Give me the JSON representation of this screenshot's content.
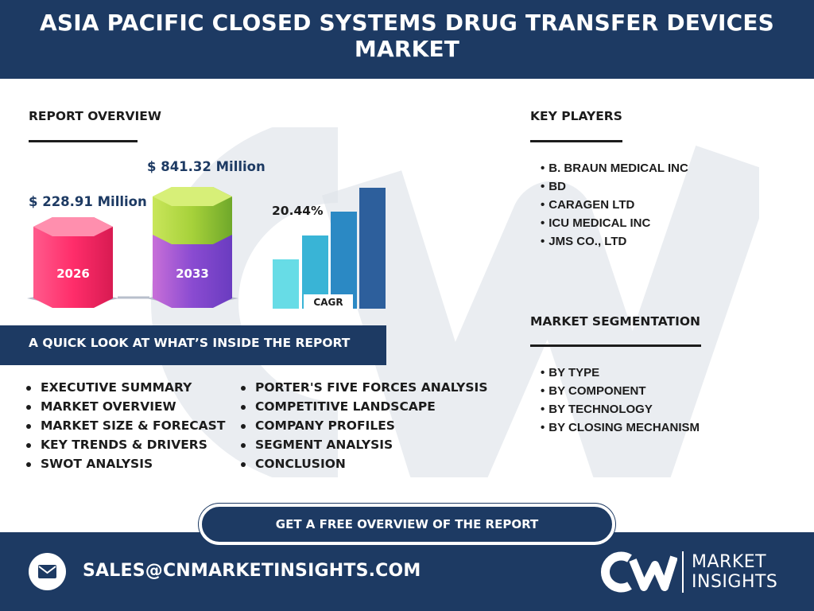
{
  "header": {
    "title": "ASIA PACIFIC CLOSED SYSTEMS DRUG TRANSFER DEVICES MARKET"
  },
  "overview": {
    "title": "REPORT OVERVIEW",
    "value_2026": "$ 228.91 Million",
    "value_2033": "$ 841.32 Million",
    "year_2026": "2026",
    "year_2033": "2033",
    "cagr_value": "20.44%",
    "cagr_label": "CAGR"
  },
  "key_players": {
    "title": "KEY PLAYERS",
    "items": [
      "B. BRAUN MEDICAL INC",
      "BD",
      "CARAGEN LTD",
      "ICU MEDICAL INC",
      "JMS CO., LTD"
    ]
  },
  "segmentation": {
    "title": "MARKET SEGMENTATION",
    "items": [
      "BY TYPE",
      "BY COMPONENT",
      "BY TECHNOLOGY",
      "BY CLOSING MECHANISM"
    ]
  },
  "quick_look": {
    "title": "A QUICK LOOK AT WHAT’S INSIDE THE REPORT",
    "left": [
      "EXECUTIVE SUMMARY",
      "MARKET OVERVIEW",
      "MARKET SIZE & FORECAST",
      "KEY TRENDS & DRIVERS",
      "SWOT ANALYSIS"
    ],
    "right": [
      "PORTER'S FIVE FORCES ANALYSIS",
      "COMPETITIVE LANDSCAPE",
      "COMPANY PROFILES",
      "SEGMENT ANALYSIS",
      "CONCLUSION"
    ]
  },
  "cta": {
    "label": "GET A FREE OVERVIEW OF THE REPORT"
  },
  "footer": {
    "email": "SALES@CNMARKETINSIGHTS.COM",
    "brand_line1": "MARKET",
    "brand_line2": "INSIGHTS",
    "logo_text": "CN"
  },
  "icons": {
    "mail": "mail-icon",
    "logo": "cn-logo-icon"
  },
  "colors": {
    "navy": "#1d3a63",
    "pink": "#ff2d6a",
    "green": "#9ccc2f",
    "purple": "#8a4bd1",
    "bar_light": "#67dce6",
    "bar_mid": "#39b4d6",
    "bar_blue": "#2b89c4",
    "bar_dark": "#2d5f9c"
  }
}
